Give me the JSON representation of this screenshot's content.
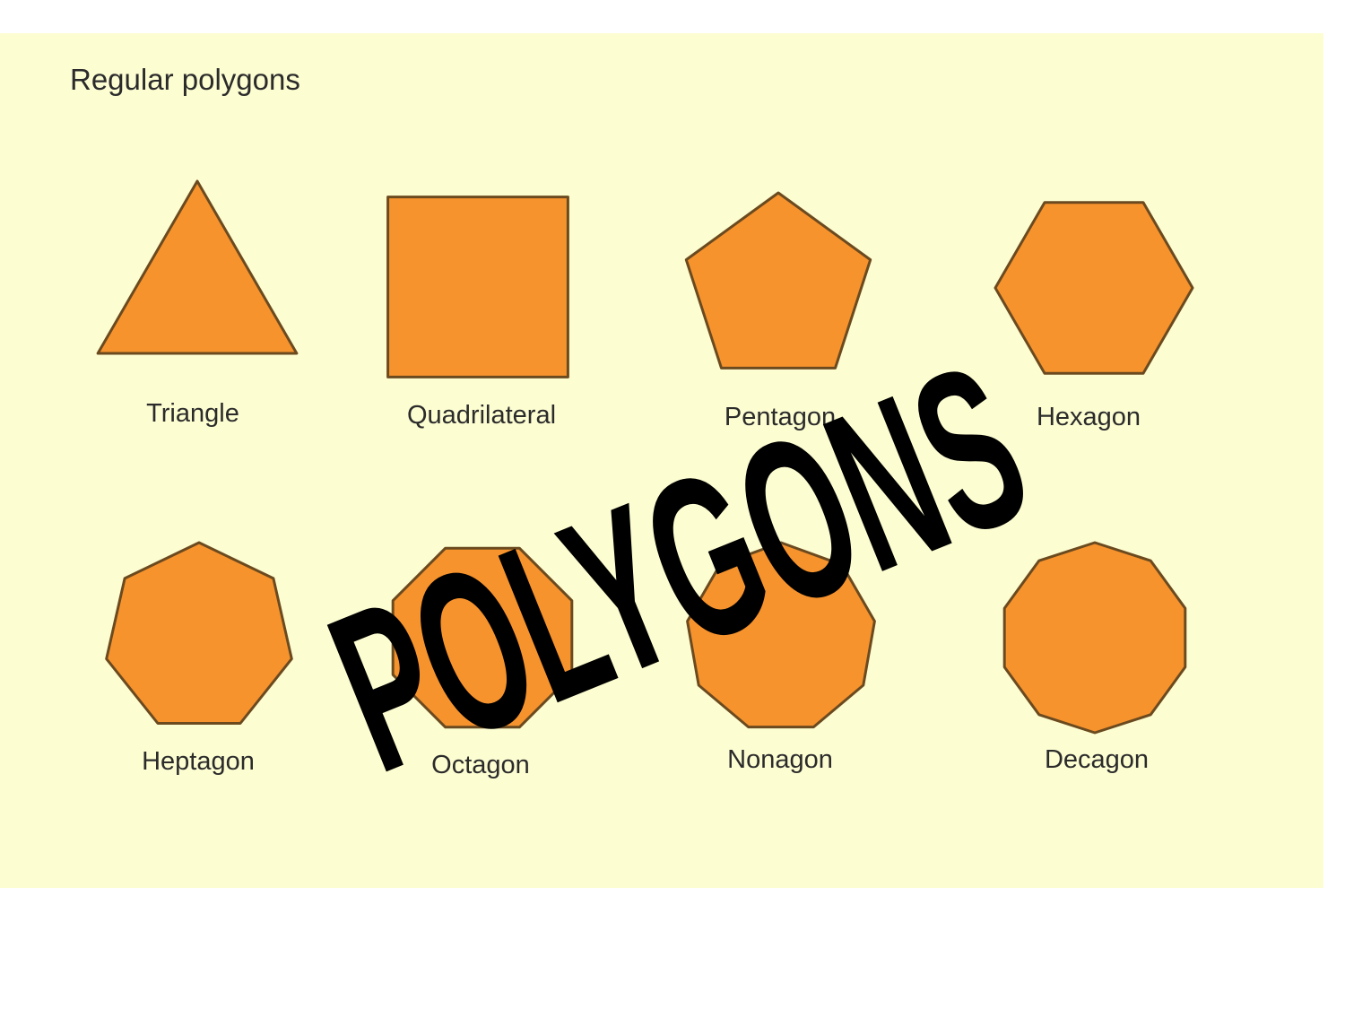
{
  "panel": {
    "background_color": "#fdfdd2",
    "title": "Regular polygons"
  },
  "shape_style": {
    "fill_color": "#f7932d",
    "stroke_color": "#6b4a1f"
  },
  "shapes": [
    {
      "label": "Triangle",
      "sides": 3
    },
    {
      "label": "Quadrilateral",
      "sides": 4
    },
    {
      "label": "Pentagon",
      "sides": 5
    },
    {
      "label": "Hexagon",
      "sides": 6
    },
    {
      "label": "Heptagon",
      "sides": 7
    },
    {
      "label": "Octagon",
      "sides": 8
    },
    {
      "label": "Nonagon",
      "sides": 9
    },
    {
      "label": "Decagon",
      "sides": 10
    }
  ],
  "overlay": {
    "text": "POLYGONS",
    "color": "#000000"
  }
}
